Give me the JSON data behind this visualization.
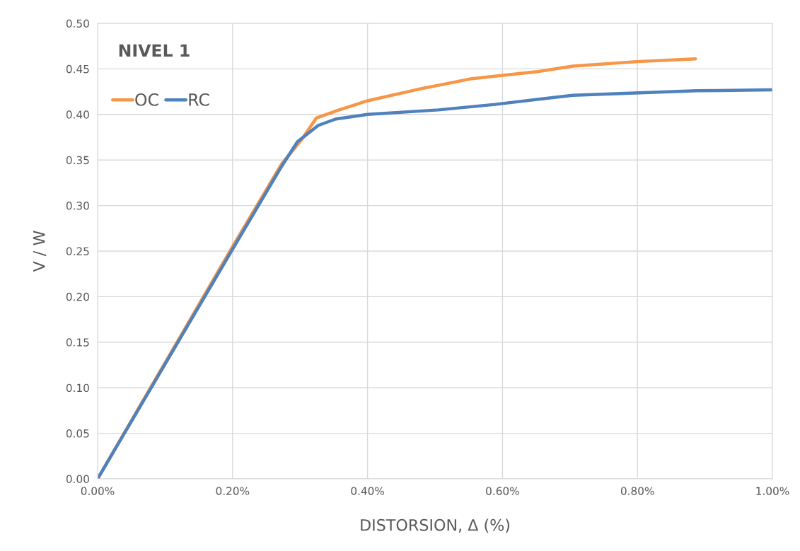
{
  "chart_data": {
    "type": "line",
    "title": "NIVEL 1",
    "xlabel": "DISTORSION, Δ (%)",
    "ylabel": "V / W",
    "xlim": [
      0,
      1.0
    ],
    "xticks": [
      {
        "value": 0,
        "label": "0.00%"
      },
      {
        "value": 0.2,
        "label": "0.20%"
      },
      {
        "value": 0.4,
        "label": "0.40%"
      },
      {
        "value": 0.6,
        "label": "0.60%"
      },
      {
        "value": 0.8,
        "label": "0.80%"
      },
      {
        "value": 1.0,
        "label": "1.00%"
      }
    ],
    "ylim": [
      0,
      0.5
    ],
    "yticks": [
      {
        "value": 0,
        "label": "0.00"
      },
      {
        "value": 0.05,
        "label": "0.05"
      },
      {
        "value": 0.1,
        "label": "0.10"
      },
      {
        "value": 0.15,
        "label": "0.15"
      },
      {
        "value": 0.2,
        "label": "0.20"
      },
      {
        "value": 0.25,
        "label": "0.25"
      },
      {
        "value": 0.3,
        "label": "0.30"
      },
      {
        "value": 0.35,
        "label": "0.35"
      },
      {
        "value": 0.4,
        "label": "0.40"
      },
      {
        "value": 0.45,
        "label": "0.45"
      },
      {
        "value": 0.5,
        "label": "0.50"
      }
    ],
    "grid": true,
    "legend": "top left",
    "marker": "none",
    "line_style": "solid",
    "series": [
      {
        "name": "OC",
        "color": "#f79646",
        "x": [
          0,
          0.2,
          0.273,
          0.302,
          0.324,
          0.358,
          0.4,
          0.484,
          0.505,
          0.552,
          0.652,
          0.704,
          0.799,
          0.886
        ],
        "values": [
          0,
          0.255,
          0.346,
          0.372,
          0.396,
          0.405,
          0.415,
          0.429,
          0.432,
          0.439,
          0.447,
          0.453,
          0.458,
          0.461
        ]
      },
      {
        "name": "RC",
        "color": "#4f81bd",
        "x": [
          0,
          0.2,
          0.271,
          0.296,
          0.327,
          0.353,
          0.4,
          0.505,
          0.589,
          0.704,
          0.888,
          1.0
        ],
        "values": [
          0,
          0.252,
          0.341,
          0.37,
          0.388,
          0.395,
          0.4,
          0.405,
          0.411,
          0.421,
          0.426,
          0.427
        ]
      }
    ]
  }
}
